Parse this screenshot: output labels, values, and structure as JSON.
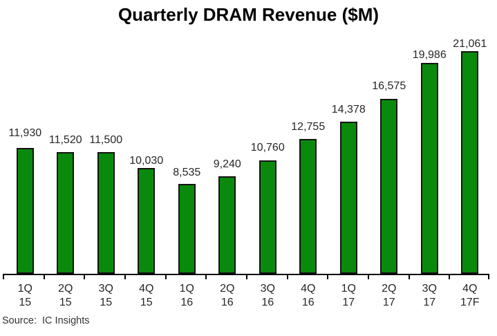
{
  "title": "Quarterly DRAM Revenue ($M)",
  "source_note": "Source:  IC Insights",
  "chart_data": {
    "type": "bar",
    "title": "Quarterly DRAM Revenue ($M)",
    "categories": [
      {
        "quarter": "1Q",
        "year": "15"
      },
      {
        "quarter": "2Q",
        "year": "15"
      },
      {
        "quarter": "3Q",
        "year": "15"
      },
      {
        "quarter": "4Q",
        "year": "15"
      },
      {
        "quarter": "1Q",
        "year": "16"
      },
      {
        "quarter": "2Q",
        "year": "16"
      },
      {
        "quarter": "3Q",
        "year": "16"
      },
      {
        "quarter": "4Q",
        "year": "16"
      },
      {
        "quarter": "1Q",
        "year": "17"
      },
      {
        "quarter": "2Q",
        "year": "17"
      },
      {
        "quarter": "3Q",
        "year": "17"
      },
      {
        "quarter": "4Q",
        "year": "17F"
      }
    ],
    "values": [
      11930,
      11520,
      11500,
      10030,
      8535,
      9240,
      10760,
      12755,
      14378,
      16575,
      19986,
      21061
    ],
    "ylabel": "",
    "xlabel": "",
    "ylim": [
      0,
      22000
    ],
    "grid": false,
    "legend": false,
    "bar_color": "#0a8a0c",
    "bar_border_color": "#121212",
    "axis_color": "#000000",
    "label_color": "#262626"
  }
}
